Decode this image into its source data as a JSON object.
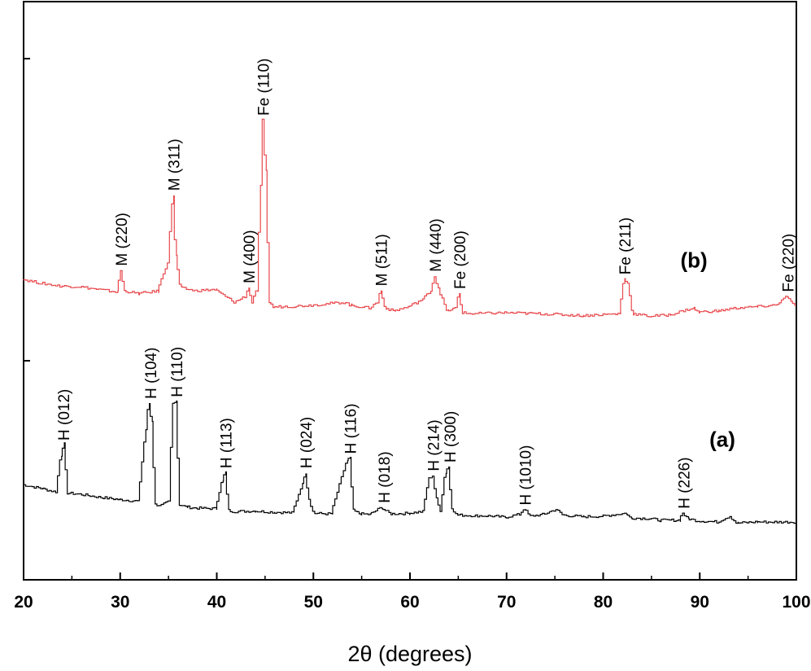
{
  "chart_data": {
    "type": "line",
    "xlabel": "2θ (degrees)",
    "ylabel": "",
    "xlim": [
      20,
      100
    ],
    "xticks": [
      "20",
      "30",
      "40",
      "50",
      "60",
      "70",
      "80",
      "90",
      "100"
    ],
    "grid": false,
    "series": [
      {
        "name": "(a)",
        "color": "#000000",
        "x": [
          20,
          22,
          23.5,
          24.0,
          24.3,
          24.7,
          26,
          28,
          30,
          32,
          32.8,
          33.1,
          33.4,
          33.8,
          34.5,
          35.2,
          35.6,
          35.9,
          36.3,
          37,
          38,
          40,
          40.7,
          41.0,
          41.4,
          42,
          44,
          46,
          48,
          49.0,
          49.3,
          49.7,
          50.2,
          52,
          53.6,
          53.9,
          54.3,
          55,
          56,
          57.2,
          57.6,
          58.2,
          60,
          61.5,
          62.1,
          62.5,
          62.9,
          63.3,
          63.8,
          64.1,
          64.5,
          65,
          67,
          69,
          70,
          71.5,
          72.0,
          72.6,
          74,
          75.3,
          76,
          78,
          80,
          82.5,
          83,
          85,
          86,
          88,
          88.4,
          88.9,
          90,
          92,
          93.3,
          94,
          96,
          98,
          100
        ],
        "y": [
          16.5,
          15.8,
          15.2,
          21.5,
          23.5,
          15.0,
          14.8,
          14.3,
          13.9,
          13.6,
          26.0,
          30.5,
          27.5,
          13.0,
          12.9,
          13.5,
          30.5,
          31.0,
          13.0,
          12.6,
          12.4,
          12.3,
          17.0,
          18.5,
          12.0,
          11.8,
          11.9,
          11.7,
          11.6,
          16.5,
          18.5,
          14.0,
          11.5,
          11.4,
          20.5,
          21.0,
          12.0,
          11.4,
          11.3,
          12.5,
          12.0,
          11.4,
          11.5,
          11.8,
          17.5,
          18.0,
          14.0,
          12.0,
          18.5,
          19.5,
          12.5,
          11.2,
          11.1,
          11.0,
          10.8,
          11.3,
          12.3,
          11.0,
          11.3,
          12.2,
          11.2,
          10.9,
          11.0,
          11.5,
          10.7,
          10.6,
          10.3,
          10.3,
          11.6,
          10.6,
          10.2,
          10.0,
          11.0,
          9.8,
          10.0,
          10.0,
          10.0
        ]
      },
      {
        "name": "(b)",
        "color": "#e8484c",
        "x": [
          20,
          22,
          24,
          26,
          28,
          29.8,
          30.2,
          30.6,
          32,
          34,
          35.1,
          35.6,
          35.9,
          36.4,
          38,
          40,
          42,
          43.1,
          43.4,
          43.8,
          44.3,
          44.7,
          44.9,
          45.2,
          45.6,
          46,
          48,
          50,
          52,
          53.5,
          54,
          56,
          56.8,
          57.1,
          57.6,
          58.5,
          60,
          61.5,
          62.3,
          62.7,
          63.1,
          64,
          64.9,
          65.2,
          65.6,
          66.5,
          70,
          74,
          78,
          81.8,
          82.3,
          82.7,
          83.2,
          85,
          87,
          89.5,
          90,
          92,
          94,
          96,
          98,
          99.2,
          99.6,
          100
        ],
        "y": [
          52.0,
          51.3,
          50.8,
          50.7,
          50.2,
          49.8,
          53.5,
          50.0,
          49.5,
          49.9,
          55.0,
          66.5,
          56.0,
          50.5,
          50.0,
          50.2,
          48.0,
          49.0,
          50.5,
          48.0,
          50.0,
          68.0,
          79.5,
          71.0,
          48.0,
          47.2,
          47.3,
          47.5,
          47.8,
          48.0,
          47.5,
          47.0,
          48.0,
          50.0,
          47.0,
          46.5,
          47.2,
          48.5,
          50.0,
          52.5,
          50.5,
          46.5,
          47.0,
          49.5,
          46.2,
          46.0,
          46.2,
          46.0,
          45.7,
          46.0,
          52.0,
          51.5,
          46.0,
          45.6,
          45.8,
          47.0,
          46.3,
          46.5,
          47.0,
          47.2,
          47.5,
          49.0,
          48.0,
          47.5
        ]
      }
    ],
    "annotations": [
      {
        "series": "(a)",
        "text": "H (012)",
        "x": 24.2,
        "y": 23.8
      },
      {
        "series": "(a)",
        "text": "H (104)",
        "x": 33.2,
        "y": 31.0
      },
      {
        "series": "(a)",
        "text": "H (110)",
        "x": 35.9,
        "y": 31.3
      },
      {
        "series": "(a)",
        "text": "H (113)",
        "x": 41.0,
        "y": 19.0
      },
      {
        "series": "(a)",
        "text": "H (024)",
        "x": 49.3,
        "y": 19.0
      },
      {
        "series": "(a)",
        "text": "H (116)",
        "x": 53.9,
        "y": 21.5
      },
      {
        "series": "(a)",
        "text": "H (018)",
        "x": 57.4,
        "y": 13.0
      },
      {
        "series": "(a)",
        "text": "H (214)",
        "x": 62.5,
        "y": 18.5
      },
      {
        "series": "(a)",
        "text": "H (300)",
        "x": 64.2,
        "y": 20.0
      },
      {
        "series": "(a)",
        "text": "H (1010)",
        "x": 72.0,
        "y": 12.6
      },
      {
        "series": "(a)",
        "text": "H (226)",
        "x": 88.4,
        "y": 12.0
      },
      {
        "series": "(b)",
        "text": "M (220)",
        "x": 30.2,
        "y": 54.0
      },
      {
        "series": "(b)",
        "text": "M (311)",
        "x": 35.6,
        "y": 67.0
      },
      {
        "series": "(b)",
        "text": "M (400)",
        "x": 43.4,
        "y": 51.0
      },
      {
        "series": "(b)",
        "text": "Fe (110)",
        "x": 44.9,
        "y": 80.0
      },
      {
        "series": "(b)",
        "text": "M (511)",
        "x": 57.1,
        "y": 50.5
      },
      {
        "series": "(b)",
        "text": "M (440)",
        "x": 62.7,
        "y": 53.0
      },
      {
        "series": "(b)",
        "text": "Fe (200)",
        "x": 65.2,
        "y": 50.0
      },
      {
        "series": "(b)",
        "text": "Fe (211)",
        "x": 82.3,
        "y": 52.5
      },
      {
        "series": "(b)",
        "text": "Fe (220)",
        "x": 99.2,
        "y": 49.5
      }
    ],
    "series_labels": [
      {
        "text": "(b)",
        "x": 88.0,
        "y": 54.0
      },
      {
        "text": "(a)",
        "x": 91.0,
        "y": 23.0
      }
    ]
  }
}
